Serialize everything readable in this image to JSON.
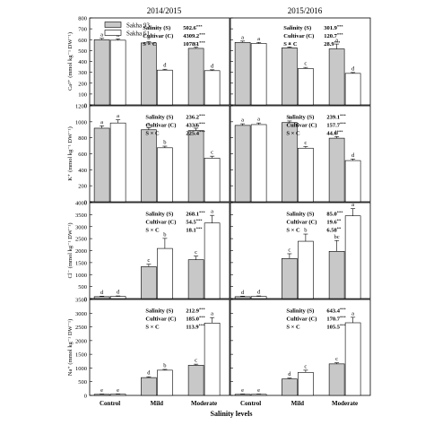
{
  "figure": {
    "column_titles": [
      "2014/2015",
      "2015/2016"
    ],
    "x_axis_title": "Salinity levels",
    "categories": [
      "Control",
      "Mild",
      "Moderate"
    ]
  },
  "legend": {
    "entries": [
      {
        "name": "Sakha 93",
        "color": "#c8c8c8"
      },
      {
        "name": "Sakha 61",
        "color": "#ffffff"
      }
    ]
  },
  "chart_data": [
    {
      "type": "bar",
      "panel": "Ca2+ 2014/2015",
      "ylabel": "Ca²⁺ (mmol kg⁻¹ DW⁻¹)",
      "ylim": [
        0,
        800
      ],
      "yticks": [
        0,
        100,
        200,
        300,
        400,
        500,
        600,
        700,
        800
      ],
      "categories": [
        "Control",
        "Mild",
        "Moderate"
      ],
      "series": [
        {
          "name": "Sakha 93",
          "values": [
            600,
            570,
            520
          ],
          "errors": [
            12,
            12,
            10
          ],
          "letters": [
            "a",
            "b",
            "c"
          ]
        },
        {
          "name": "Sakha 61",
          "values": [
            595,
            320,
            315
          ],
          "errors": [
            12,
            8,
            8
          ],
          "letters": [
            "a",
            "d",
            "d"
          ]
        }
      ],
      "anova": [
        {
          "label": "Salinity (S)",
          "value": "502.6",
          "sig": "***"
        },
        {
          "label": "Cultivar (C)",
          "value": "4309.2",
          "sig": "***"
        },
        {
          "label": "S × C",
          "value": "1078.1",
          "sig": "***"
        }
      ]
    },
    {
      "type": "bar",
      "panel": "Ca2+ 2015/2016",
      "ylabel": "",
      "ylim": [
        0,
        800
      ],
      "yticks": [
        0,
        100,
        200,
        300,
        400,
        500,
        600,
        700,
        800
      ],
      "categories": [
        "Control",
        "Mild",
        "Moderate"
      ],
      "series": [
        {
          "name": "Sakha 93",
          "values": [
            575,
            525,
            515
          ],
          "errors": [
            12,
            8,
            45
          ],
          "letters": [
            "a",
            "a",
            "a"
          ]
        },
        {
          "name": "Sakha 61",
          "values": [
            565,
            335,
            290
          ],
          "errors": [
            10,
            10,
            8
          ],
          "letters": [
            "a",
            "c",
            "d"
          ]
        }
      ],
      "anova": [
        {
          "label": "Salinity (S)",
          "value": "301.9",
          "sig": "***"
        },
        {
          "label": "Cultivar (C)",
          "value": "120.7",
          "sig": "***"
        },
        {
          "label": "S × C",
          "value": "28.9",
          "sig": "***"
        }
      ]
    },
    {
      "type": "bar",
      "panel": "K+ 2014/2015",
      "ylabel": "K⁺ (mmol kg⁻¹ DW⁻¹)",
      "ylim": [
        0,
        1200
      ],
      "yticks": [
        0,
        200,
        400,
        600,
        800,
        1000,
        1200
      ],
      "categories": [
        "Control",
        "Mild",
        "Moderate"
      ],
      "series": [
        {
          "name": "Sakha 93",
          "values": [
            920,
            900,
            890
          ],
          "errors": [
            30,
            25,
            30
          ],
          "letters": [
            "a",
            "a",
            "a"
          ]
        },
        {
          "name": "Sakha 61",
          "values": [
            985,
            675,
            545
          ],
          "errors": [
            40,
            20,
            25
          ],
          "letters": [
            "a",
            "b",
            "c"
          ]
        }
      ],
      "anova": [
        {
          "label": "Salinity (S)",
          "value": "236.2",
          "sig": "***"
        },
        {
          "label": "Cultivar (C)",
          "value": "433.6",
          "sig": "***"
        },
        {
          "label": "S × C",
          "value": "225.4",
          "sig": "***"
        }
      ]
    },
    {
      "type": "bar",
      "panel": "K+ 2015/2016",
      "ylabel": "",
      "ylim": [
        0,
        1200
      ],
      "yticks": [
        0,
        200,
        400,
        600,
        800,
        1000,
        1200
      ],
      "categories": [
        "Control",
        "Mild",
        "Moderate"
      ],
      "series": [
        {
          "name": "Sakha 93",
          "values": [
            955,
            990,
            795
          ],
          "errors": [
            20,
            20,
            20
          ],
          "letters": [
            "a",
            "a",
            "b"
          ]
        },
        {
          "name": "Sakha 61",
          "values": [
            965,
            670,
            515
          ],
          "errors": [
            20,
            20,
            20
          ],
          "letters": [
            "a",
            "c",
            "d"
          ]
        }
      ],
      "anova": [
        {
          "label": "Salinity (S)",
          "value": "239.1",
          "sig": "***"
        },
        {
          "label": "Cultivar (C)",
          "value": "157.7",
          "sig": "***"
        },
        {
          "label": "S × C",
          "value": "44.6",
          "sig": "***"
        }
      ]
    },
    {
      "type": "bar",
      "panel": "Cl- 2014/2015",
      "ylabel": "Cl⁻ (mmol kg⁻¹ DW⁻¹)",
      "ylim": [
        0,
        4000
      ],
      "yticks": [
        0,
        500,
        1000,
        1500,
        2000,
        2500,
        3000,
        3500,
        4000
      ],
      "categories": [
        "Control",
        "Mild",
        "Moderate"
      ],
      "series": [
        {
          "name": "Sakha 93",
          "values": [
            80,
            1330,
            1620
          ],
          "errors": [
            20,
            100,
            150
          ],
          "letters": [
            "d",
            "c",
            "c"
          ]
        },
        {
          "name": "Sakha 61",
          "values": [
            90,
            2090,
            3150
          ],
          "errors": [
            20,
            420,
            320
          ],
          "letters": [
            "d",
            "b",
            "a"
          ]
        }
      ],
      "anova": [
        {
          "label": "Salinity (S)",
          "value": "268.1",
          "sig": "***"
        },
        {
          "label": "Cultivar (C)",
          "value": "54.5",
          "sig": "***"
        },
        {
          "label": "S × C",
          "value": "18.1",
          "sig": "***"
        }
      ]
    },
    {
      "type": "bar",
      "panel": "Cl- 2015/2016",
      "ylabel": "",
      "ylim": [
        0,
        4000
      ],
      "yticks": [
        0,
        500,
        1000,
        1500,
        2000,
        2500,
        3000,
        3500,
        4000
      ],
      "categories": [
        "Control",
        "Mild",
        "Moderate"
      ],
      "series": [
        {
          "name": "Sakha 93",
          "values": [
            80,
            1670,
            1970
          ],
          "errors": [
            20,
            200,
            450
          ],
          "letters": [
            "d",
            "c",
            "bc"
          ]
        },
        {
          "name": "Sakha 61",
          "values": [
            90,
            2390,
            3450
          ],
          "errors": [
            20,
            300,
            300
          ],
          "letters": [
            "d",
            "b",
            "a"
          ]
        }
      ],
      "anova": [
        {
          "label": "Salinity (S)",
          "value": "85.0",
          "sig": "***"
        },
        {
          "label": "Cultivar (C)",
          "value": "19.6",
          "sig": "**"
        },
        {
          "label": "S × C",
          "value": "6.58",
          "sig": "**"
        }
      ]
    },
    {
      "type": "bar",
      "panel": "Na+ 2014/2015",
      "ylabel": "Na⁺ (mmol kg⁻¹ DW⁻¹)",
      "ylim": [
        0,
        3500
      ],
      "yticks": [
        0,
        500,
        1000,
        1500,
        2000,
        2500,
        3000,
        3500
      ],
      "categories": [
        "Control",
        "Mild",
        "Moderate"
      ],
      "series": [
        {
          "name": "Sakha 93",
          "values": [
            40,
            650,
            1100
          ],
          "errors": [
            10,
            30,
            40
          ],
          "letters": [
            "e",
            "d",
            "c"
          ]
        },
        {
          "name": "Sakha 61",
          "values": [
            45,
            920,
            2640
          ],
          "errors": [
            10,
            30,
            200
          ],
          "letters": [
            "e",
            "b",
            "a"
          ]
        }
      ],
      "anova": [
        {
          "label": "Salinity (S)",
          "value": "212.9",
          "sig": "***"
        },
        {
          "label": "Cultivar (C)",
          "value": "185.0",
          "sig": "***"
        },
        {
          "label": "S × C",
          "value": "113.9",
          "sig": "***"
        }
      ]
    },
    {
      "type": "bar",
      "panel": "Na+ 2015/2016",
      "ylabel": "",
      "ylim": [
        0,
        3500
      ],
      "yticks": [
        0,
        500,
        1000,
        1500,
        2000,
        2500,
        3000,
        3500
      ],
      "categories": [
        "Control",
        "Mild",
        "Moderate"
      ],
      "series": [
        {
          "name": "Sakha 93",
          "values": [
            40,
            600,
            1150
          ],
          "errors": [
            10,
            30,
            40
          ],
          "letters": [
            "e",
            "d",
            "c"
          ]
        },
        {
          "name": "Sakha 61",
          "values": [
            40,
            840,
            2650
          ],
          "errors": [
            10,
            80,
            200
          ],
          "letters": [
            "e",
            "c",
            "a"
          ]
        }
      ],
      "anova": [
        {
          "label": "Salinity (S)",
          "value": "643.4",
          "sig": "***"
        },
        {
          "label": "Cultivar (C)",
          "value": "170.7",
          "sig": "***"
        },
        {
          "label": "S × C",
          "value": "105.5",
          "sig": "***"
        }
      ]
    }
  ]
}
